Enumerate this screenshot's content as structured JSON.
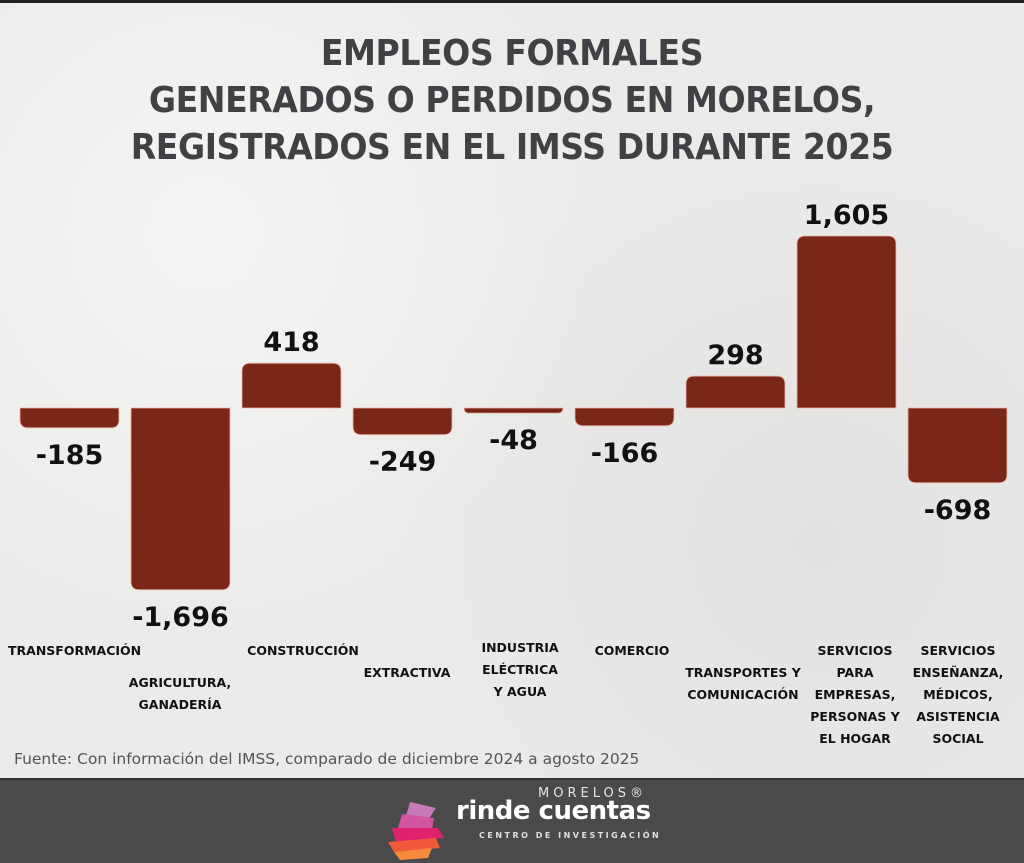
{
  "title_lines": [
    "EMPLEOS FORMALES",
    "GENERADOS O PERDIDOS EN MORELOS,",
    "REGISTRADOS EN EL IMSS DURANTE 2025"
  ],
  "source": "Fuente: Con información del IMSS, comparado de diciembre 2024 a agosto 2025",
  "brand": {
    "top": "MORELOS®",
    "main": "rinde cuentas",
    "sub": "CENTRO DE INVESTIGACIÓN"
  },
  "colors": {
    "bar": "#7b2718",
    "bar_edge": "#e8b8a8",
    "label": "#111111",
    "title": "#404144",
    "footer": "#4a4a4b"
  },
  "chart_data": {
    "type": "bar",
    "title": "EMPLEOS FORMALES GENERADOS O PERDIDOS EN MORELOS, REGISTRADOS EN EL IMSS DURANTE 2025",
    "xlabel": "",
    "ylabel": "",
    "grid": false,
    "categories": [
      [
        "TRANSFORMACIÓN"
      ],
      [
        "AGRICULTURA,",
        "GANADERÍA"
      ],
      [
        "CONSTRUCCIÓN"
      ],
      [
        "EXTRACTIVA"
      ],
      [
        "INDUSTRIA",
        "ELÉCTRICA",
        "Y AGUA"
      ],
      [
        "COMERCIO"
      ],
      [
        "TRANSPORTES Y",
        "COMUNICACIÓN"
      ],
      [
        "SERVICIOS",
        "PARA",
        "EMPRESAS,",
        "PERSONAS Y",
        "EL HOGAR"
      ],
      [
        "SERVICIOS",
        "ENSEÑANZA,",
        "MÉDICOS,",
        "ASISTENCIA",
        "SOCIAL"
      ]
    ],
    "values": [
      -185,
      -1696,
      418,
      -249,
      -48,
      -166,
      298,
      1605,
      -698
    ],
    "value_labels": [
      "-185",
      "-1,696",
      "418",
      "-249",
      "-48",
      "-166",
      "298",
      "1,605",
      "-698"
    ],
    "ylim": [
      -1696,
      1605
    ]
  }
}
